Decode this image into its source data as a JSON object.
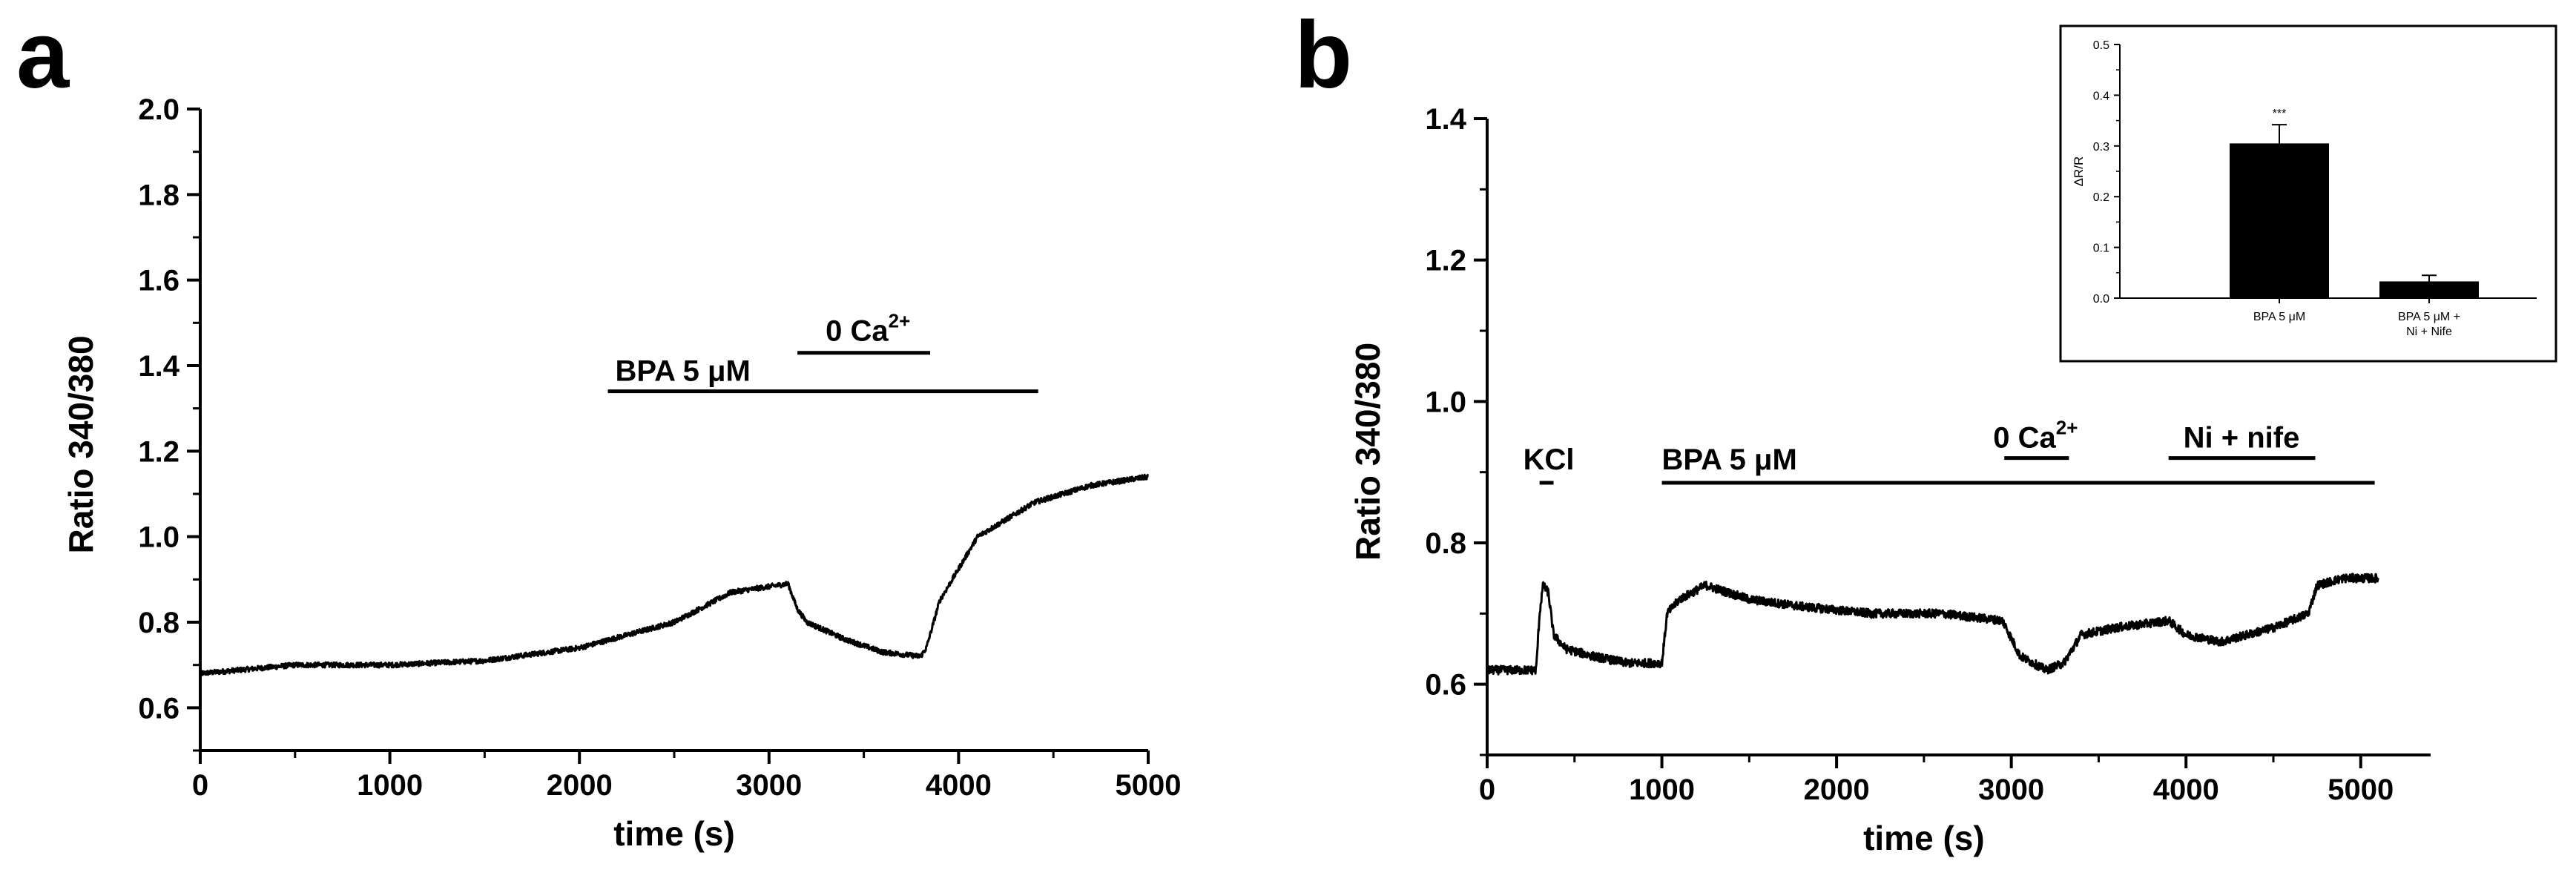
{
  "chart_data": [
    {
      "panel": "a",
      "type": "line",
      "xlabel": "time (s)",
      "ylabel": "Ratio 340/380",
      "xlim": [
        0,
        5000
      ],
      "ylim": [
        0.5,
        2.0
      ],
      "xticks": [
        0,
        1000,
        2000,
        3000,
        4000,
        5000
      ],
      "xtick_labels": [
        "0",
        "1000",
        "2000",
        "3000",
        "4000",
        "5000"
      ],
      "yticks": [
        0.6,
        0.8,
        1.0,
        1.2,
        1.4,
        1.6,
        1.8,
        2.0
      ],
      "ytick_labels": [
        "0.6",
        "0.8",
        "1.0",
        "1.2",
        "1.4",
        "1.6",
        "1.8",
        "2.0"
      ],
      "series": [
        {
          "name": "trace",
          "x": [
            0,
            250,
            500,
            1000,
            1500,
            2000,
            2500,
            2800,
            3100,
            3150,
            3200,
            3400,
            3600,
            3800,
            3830,
            3900,
            4100,
            4400,
            4700,
            5000
          ],
          "y": [
            0.68,
            0.69,
            0.7,
            0.7,
            0.71,
            0.74,
            0.8,
            0.87,
            0.89,
            0.83,
            0.8,
            0.76,
            0.73,
            0.72,
            0.74,
            0.85,
            1.0,
            1.08,
            1.12,
            1.14
          ]
        }
      ],
      "annotations": [
        {
          "text": "BPA 5 μM",
          "start": 2150,
          "end": 4420,
          "y": 1.34
        },
        {
          "text": "0 Ca",
          "sup": "2+",
          "start": 3150,
          "end": 3850,
          "y": 1.43
        }
      ]
    },
    {
      "panel": "b",
      "type": "line",
      "xlabel": "time (s)",
      "ylabel": "Ratio 340/380",
      "xlim": [
        0,
        5400
      ],
      "ylim": [
        0.5,
        1.4
      ],
      "xticks": [
        0,
        1000,
        2000,
        3000,
        4000,
        5000
      ],
      "xtick_labels": [
        "0",
        "1000",
        "2000",
        "3000",
        "4000",
        "5000"
      ],
      "yticks": [
        0.6,
        0.8,
        1.0,
        1.2,
        1.4
      ],
      "ytick_labels": [
        "0.6",
        "0.8",
        "1.0",
        "1.2",
        "1.4"
      ],
      "series": [
        {
          "name": "trace",
          "x": [
            0,
            280,
            300,
            320,
            350,
            380,
            450,
            600,
            800,
            1000,
            1030,
            1100,
            1250,
            1500,
            1800,
            2200,
            2600,
            2950,
            3050,
            3200,
            3300,
            3400,
            3600,
            3900,
            4000,
            4200,
            4500,
            4700,
            4750,
            4900,
            5100
          ],
          "y": [
            0.62,
            0.62,
            0.7,
            0.74,
            0.73,
            0.67,
            0.65,
            0.64,
            0.63,
            0.63,
            0.7,
            0.72,
            0.74,
            0.72,
            0.71,
            0.7,
            0.7,
            0.69,
            0.64,
            0.62,
            0.63,
            0.67,
            0.68,
            0.69,
            0.67,
            0.66,
            0.68,
            0.7,
            0.74,
            0.75,
            0.75
          ]
        }
      ],
      "annotations": [
        {
          "text": "KCl",
          "start": 300,
          "end": 380,
          "y": 0.885
        },
        {
          "text": "BPA 5 μM",
          "start": 1000,
          "end": 5080,
          "y": 0.885
        },
        {
          "text": "0 Ca",
          "sup": "2+",
          "start": 2960,
          "end": 3330,
          "y": 0.92
        },
        {
          "text": "Ni + nife",
          "start": 3900,
          "end": 4740,
          "y": 0.92
        }
      ],
      "inset": {
        "type": "bar",
        "ylabel": "ΔR/R",
        "ylim": [
          0.0,
          0.5
        ],
        "yticks": [
          0.0,
          0.1,
          0.2,
          0.3,
          0.4,
          0.5
        ],
        "ytick_labels": [
          "0.0",
          "0.1",
          "0.2",
          "0.3",
          "0.4",
          "0.5"
        ],
        "categories": [
          "BPA 5 μM",
          "BPA 5 μM + Ni + Nife"
        ],
        "category_lines": [
          [
            "BPA 5 μM"
          ],
          [
            "BPA 5 μM +",
            "Ni + Nife"
          ]
        ],
        "values": [
          0.305,
          0.033
        ],
        "errors": [
          0.037,
          0.012
        ],
        "significance": [
          "***",
          ""
        ]
      }
    }
  ],
  "labels": {
    "panel_a": "a",
    "panel_b": "b"
  }
}
